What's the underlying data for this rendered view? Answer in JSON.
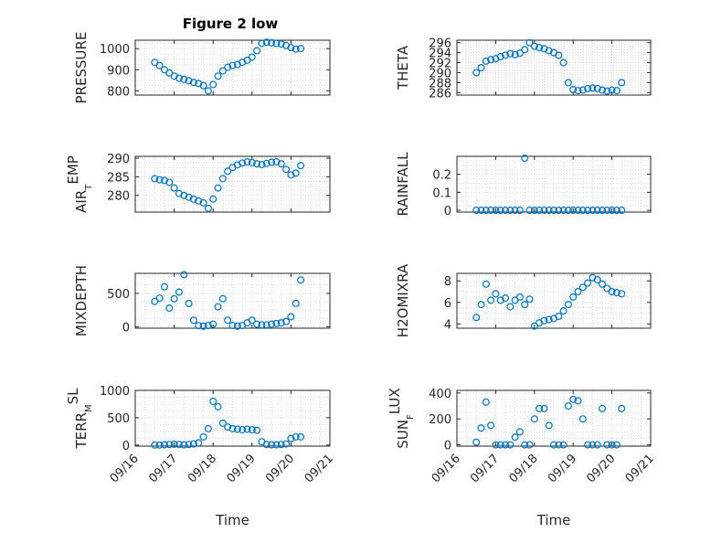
{
  "figure": {
    "title": "Figure 2 low",
    "colors": {
      "marker": "#0072BD",
      "axis": "#262626",
      "grid": "#d9d9d9",
      "background": "#ffffff"
    }
  },
  "chart_data": [
    {
      "type": "scatter",
      "title": "Figure 2 low",
      "ylabel": "PRESSURE",
      "ylim": [
        780,
        1040
      ],
      "yticks": [
        800,
        900,
        1000
      ],
      "ytick_labels": [
        "800",
        "900",
        "1000"
      ],
      "grid": true,
      "show_xticks": false,
      "series": [
        {
          "x": [
            "09/16 12:00",
            "09/16 15:00",
            "09/16 18:00",
            "09/16 21:00",
            "09/17 00:00",
            "09/17 03:00",
            "09/17 06:00",
            "09/17 09:00",
            "09/17 12:00",
            "09/17 15:00",
            "09/17 18:00",
            "09/17 21:00",
            "09/18 00:00",
            "09/18 03:00",
            "09/18 06:00",
            "09/18 09:00",
            "09/18 12:00",
            "09/18 15:00",
            "09/18 18:00",
            "09/18 21:00",
            "09/19 00:00",
            "09/19 03:00",
            "09/19 06:00",
            "09/19 09:00",
            "09/19 12:00",
            "09/19 15:00",
            "09/19 18:00",
            "09/19 21:00",
            "09/20 00:00",
            "09/20 03:00",
            "09/20 06:00"
          ],
          "y": [
            935,
            920,
            900,
            885,
            870,
            860,
            855,
            848,
            840,
            835,
            825,
            800,
            830,
            870,
            895,
            912,
            920,
            925,
            935,
            945,
            960,
            990,
            1025,
            1030,
            1028,
            1025,
            1022,
            1015,
            1005,
            998,
            1000
          ]
        }
      ]
    },
    {
      "type": "scatter",
      "title": "",
      "ylabel": "THETA",
      "ylim": [
        285.5,
        296.5
      ],
      "yticks": [
        286,
        288,
        290,
        292,
        294,
        296
      ],
      "ytick_labels": [
        "286",
        "288",
        "290",
        "292",
        "294",
        "296"
      ],
      "grid": true,
      "show_xticks": false,
      "series": [
        {
          "x": [
            "09/16 12:00",
            "09/16 15:00",
            "09/16 18:00",
            "09/16 21:00",
            "09/17 00:00",
            "09/17 03:00",
            "09/17 06:00",
            "09/17 09:00",
            "09/17 12:00",
            "09/17 15:00",
            "09/17 18:00",
            "09/17 21:00",
            "09/18 00:00",
            "09/18 03:00",
            "09/18 06:00",
            "09/18 09:00",
            "09/18 12:00",
            "09/18 15:00",
            "09/18 18:00",
            "09/18 21:00",
            "09/19 00:00",
            "09/19 03:00",
            "09/19 06:00",
            "09/19 09:00",
            "09/19 12:00",
            "09/19 15:00",
            "09/19 18:00",
            "09/19 21:00",
            "09/20 00:00",
            "09/20 03:00",
            "09/20 06:00"
          ],
          "y": [
            290,
            291,
            292.3,
            292.6,
            292.8,
            293.2,
            293.5,
            293.8,
            293.6,
            293.9,
            294.6,
            296,
            295.3,
            295,
            294.8,
            294.4,
            294,
            293.5,
            292,
            288,
            286.6,
            286.4,
            286.5,
            286.8,
            286.9,
            286.8,
            286.5,
            286.3,
            286.5,
            286.4,
            288
          ]
        }
      ]
    },
    {
      "type": "scatter",
      "title": "",
      "ylabel": "AIR_TEMP",
      "ylabel_main": "AIR",
      "ylabel_sub": "T",
      "ylabel_rest": "EMP",
      "ylim": [
        275.5,
        290.5
      ],
      "yticks": [
        280,
        285,
        290
      ],
      "ytick_labels": [
        "280",
        "285",
        "290"
      ],
      "grid": true,
      "show_xticks": false,
      "series": [
        {
          "x": [
            "09/16 12:00",
            "09/16 15:00",
            "09/16 18:00",
            "09/16 21:00",
            "09/17 00:00",
            "09/17 03:00",
            "09/17 06:00",
            "09/17 09:00",
            "09/17 12:00",
            "09/17 15:00",
            "09/17 18:00",
            "09/17 21:00",
            "09/18 00:00",
            "09/18 03:00",
            "09/18 06:00",
            "09/18 09:00",
            "09/18 12:00",
            "09/18 15:00",
            "09/18 18:00",
            "09/18 21:00",
            "09/19 00:00",
            "09/19 03:00",
            "09/19 06:00",
            "09/19 09:00",
            "09/19 12:00",
            "09/19 15:00",
            "09/19 18:00",
            "09/19 21:00",
            "09/20 00:00",
            "09/20 03:00",
            "09/20 06:00"
          ],
          "y": [
            284.5,
            284.2,
            284,
            283.5,
            282,
            280.5,
            280,
            279.5,
            279,
            278.5,
            278,
            276.5,
            279,
            282,
            284.5,
            286.5,
            287.5,
            288.2,
            288.7,
            289,
            288.8,
            288.5,
            288.3,
            288.6,
            288.9,
            289,
            288.5,
            287,
            285.5,
            286,
            288
          ]
        }
      ]
    },
    {
      "type": "scatter",
      "title": "",
      "ylabel": "RAINFALL",
      "ylim": [
        -0.01,
        0.3
      ],
      "yticks": [
        0,
        0.1,
        0.2
      ],
      "ytick_labels": [
        "0",
        "0.1",
        "0.2"
      ],
      "grid": true,
      "show_xticks": false,
      "series": [
        {
          "x": [
            "09/16 12:00",
            "09/16 15:00",
            "09/16 18:00",
            "09/16 21:00",
            "09/17 00:00",
            "09/17 03:00",
            "09/17 06:00",
            "09/17 09:00",
            "09/17 12:00",
            "09/17 15:00",
            "09/17 18:00",
            "09/17 21:00",
            "09/18 00:00",
            "09/18 03:00",
            "09/18 06:00",
            "09/18 09:00",
            "09/18 12:00",
            "09/18 15:00",
            "09/18 18:00",
            "09/18 21:00",
            "09/19 00:00",
            "09/19 03:00",
            "09/19 06:00",
            "09/19 09:00",
            "09/19 12:00",
            "09/19 15:00",
            "09/19 18:00",
            "09/19 21:00",
            "09/20 00:00",
            "09/20 03:00",
            "09/20 06:00"
          ],
          "y": [
            0,
            0,
            0,
            0,
            0,
            0,
            0,
            0,
            0,
            0,
            0.29,
            0,
            0,
            0,
            0,
            0,
            0,
            0,
            0,
            0,
            0,
            0,
            0,
            0,
            0,
            0,
            0,
            0,
            0,
            0,
            0
          ]
        }
      ]
    },
    {
      "type": "scatter",
      "title": "",
      "ylabel": "MIXDEPTH",
      "ylim": [
        -20,
        800
      ],
      "yticks": [
        0,
        500
      ],
      "ytick_labels": [
        "0",
        "500"
      ],
      "grid": true,
      "show_xticks": false,
      "series": [
        {
          "x": [
            "09/16 12:00",
            "09/16 15:00",
            "09/16 18:00",
            "09/16 21:00",
            "09/17 00:00",
            "09/17 03:00",
            "09/17 06:00",
            "09/17 09:00",
            "09/17 12:00",
            "09/17 15:00",
            "09/17 18:00",
            "09/17 21:00",
            "09/18 00:00",
            "09/18 03:00",
            "09/18 06:00",
            "09/18 09:00",
            "09/18 12:00",
            "09/18 15:00",
            "09/18 18:00",
            "09/18 21:00",
            "09/19 00:00",
            "09/19 03:00",
            "09/19 06:00",
            "09/19 09:00",
            "09/19 12:00",
            "09/19 15:00",
            "09/19 18:00",
            "09/19 21:00",
            "09/20 00:00",
            "09/20 03:00",
            "09/20 06:00"
          ],
          "y": [
            380,
            430,
            600,
            280,
            420,
            520,
            780,
            350,
            100,
            20,
            10,
            20,
            40,
            300,
            420,
            100,
            20,
            10,
            20,
            60,
            100,
            40,
            30,
            30,
            40,
            50,
            60,
            80,
            150,
            350,
            700
          ]
        }
      ]
    },
    {
      "type": "scatter",
      "title": "",
      "ylabel": "H2OMIXRA",
      "ylim": [
        3.6,
        8.7
      ],
      "yticks": [
        4,
        6,
        8
      ],
      "ytick_labels": [
        "4",
        "6",
        "8"
      ],
      "grid": true,
      "show_xticks": false,
      "series": [
        {
          "x": [
            "09/16 12:00",
            "09/16 15:00",
            "09/16 18:00",
            "09/16 21:00",
            "09/17 00:00",
            "09/17 03:00",
            "09/17 06:00",
            "09/17 09:00",
            "09/17 12:00",
            "09/17 15:00",
            "09/17 18:00",
            "09/17 21:00",
            "09/18 00:00",
            "09/18 03:00",
            "09/18 06:00",
            "09/18 09:00",
            "09/18 12:00",
            "09/18 15:00",
            "09/18 18:00",
            "09/18 21:00",
            "09/19 00:00",
            "09/19 03:00",
            "09/19 06:00",
            "09/19 09:00",
            "09/19 12:00",
            "09/19 15:00",
            "09/19 18:00",
            "09/19 21:00",
            "09/20 00:00",
            "09/20 03:00",
            "09/20 06:00"
          ],
          "y": [
            4.6,
            5.8,
            7.7,
            6.2,
            6.8,
            6.2,
            6.4,
            5.6,
            6.2,
            6.5,
            5.8,
            6.3,
            3.8,
            4.1,
            4.3,
            4.4,
            4.5,
            4.7,
            5.2,
            5.8,
            6.5,
            7.0,
            7.4,
            7.8,
            8.3,
            8.1,
            7.7,
            7.3,
            7.0,
            6.9,
            6.8
          ]
        }
      ]
    },
    {
      "type": "scatter",
      "title": "",
      "ylabel": "TERR_MSL",
      "ylabel_main": "TERR",
      "ylabel_sub": "M",
      "ylabel_rest": "SL",
      "xlabel": "Time",
      "ylim": [
        -20,
        1000
      ],
      "yticks": [
        0,
        500,
        1000
      ],
      "ytick_labels": [
        "0",
        "500",
        "1000"
      ],
      "grid": true,
      "show_xticks": true,
      "series": [
        {
          "x": [
            "09/16 12:00",
            "09/16 15:00",
            "09/16 18:00",
            "09/16 21:00",
            "09/17 00:00",
            "09/17 03:00",
            "09/17 06:00",
            "09/17 09:00",
            "09/17 12:00",
            "09/17 15:00",
            "09/17 18:00",
            "09/17 21:00",
            "09/18 00:00",
            "09/18 03:00",
            "09/18 06:00",
            "09/18 09:00",
            "09/18 12:00",
            "09/18 15:00",
            "09/18 18:00",
            "09/18 21:00",
            "09/19 00:00",
            "09/19 03:00",
            "09/19 06:00",
            "09/19 09:00",
            "09/19 12:00",
            "09/19 15:00",
            "09/19 18:00",
            "09/19 21:00",
            "09/20 00:00",
            "09/20 03:00",
            "09/20 06:00"
          ],
          "y": [
            0,
            0,
            5,
            10,
            15,
            10,
            5,
            10,
            20,
            40,
            150,
            300,
            800,
            700,
            400,
            330,
            300,
            290,
            280,
            290,
            280,
            270,
            60,
            10,
            5,
            5,
            10,
            20,
            120,
            150,
            150
          ]
        }
      ]
    },
    {
      "type": "scatter",
      "title": "",
      "ylabel": "SUN_FLUX",
      "ylabel_main": "SUN",
      "ylabel_sub": "F",
      "ylabel_rest": "LUX",
      "xlabel": "Time",
      "ylim": [
        -10,
        420
      ],
      "yticks": [
        0,
        200,
        400
      ],
      "ytick_labels": [
        "0",
        "200",
        "400"
      ],
      "grid": true,
      "show_xticks": true,
      "series": [
        {
          "x": [
            "09/16 12:00",
            "09/16 15:00",
            "09/16 18:00",
            "09/16 21:00",
            "09/17 00:00",
            "09/17 03:00",
            "09/17 06:00",
            "09/17 09:00",
            "09/17 12:00",
            "09/17 15:00",
            "09/17 18:00",
            "09/17 21:00",
            "09/18 00:00",
            "09/18 03:00",
            "09/18 06:00",
            "09/18 09:00",
            "09/18 12:00",
            "09/18 15:00",
            "09/18 18:00",
            "09/18 21:00",
            "09/19 00:00",
            "09/19 03:00",
            "09/19 06:00",
            "09/19 09:00",
            "09/19 12:00",
            "09/19 15:00",
            "09/19 18:00",
            "09/19 21:00",
            "09/20 00:00",
            "09/20 03:00",
            "09/20 06:00"
          ],
          "y": [
            20,
            130,
            330,
            150,
            0,
            0,
            0,
            0,
            60,
            100,
            0,
            0,
            200,
            280,
            280,
            150,
            0,
            0,
            0,
            300,
            350,
            340,
            200,
            0,
            0,
            0,
            280,
            0,
            0,
            0,
            280
          ]
        }
      ]
    }
  ],
  "xaxis": {
    "ticks": [
      "09/16",
      "09/17",
      "09/18",
      "09/19",
      "09/20",
      "09/21"
    ],
    "xlim": [
      "09/16 00:00",
      "09/21 00:00"
    ],
    "xlabel": "Time"
  }
}
